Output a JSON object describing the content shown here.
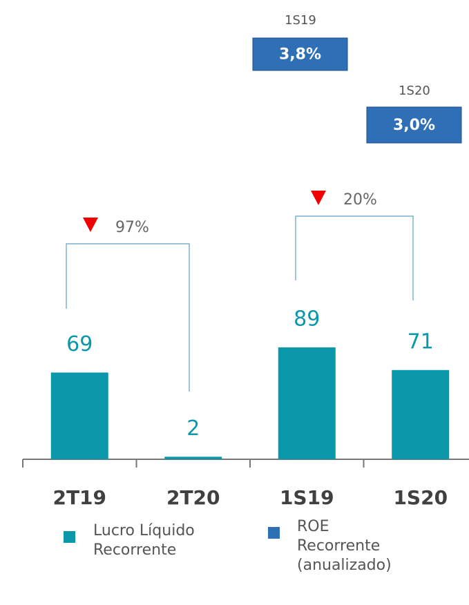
{
  "chart_data": {
    "type": "bar",
    "categories": [
      "2T19",
      "2T20",
      "1S19",
      "1S20"
    ],
    "series": [
      {
        "name": "Lucro Líquido Recorrente",
        "color": "#0a97aa",
        "values": [
          69,
          2,
          89,
          71
        ]
      },
      {
        "name": "ROE Recorrente (anualizado)",
        "color": "#2f6fb5",
        "values": [
          null,
          null,
          3.8,
          3.0
        ],
        "value_labels": [
          null,
          null,
          "3,8%",
          "3,0%"
        ]
      }
    ],
    "annotations": [
      "97%",
      "20%"
    ],
    "ylim": [
      0,
      100
    ]
  }
}
